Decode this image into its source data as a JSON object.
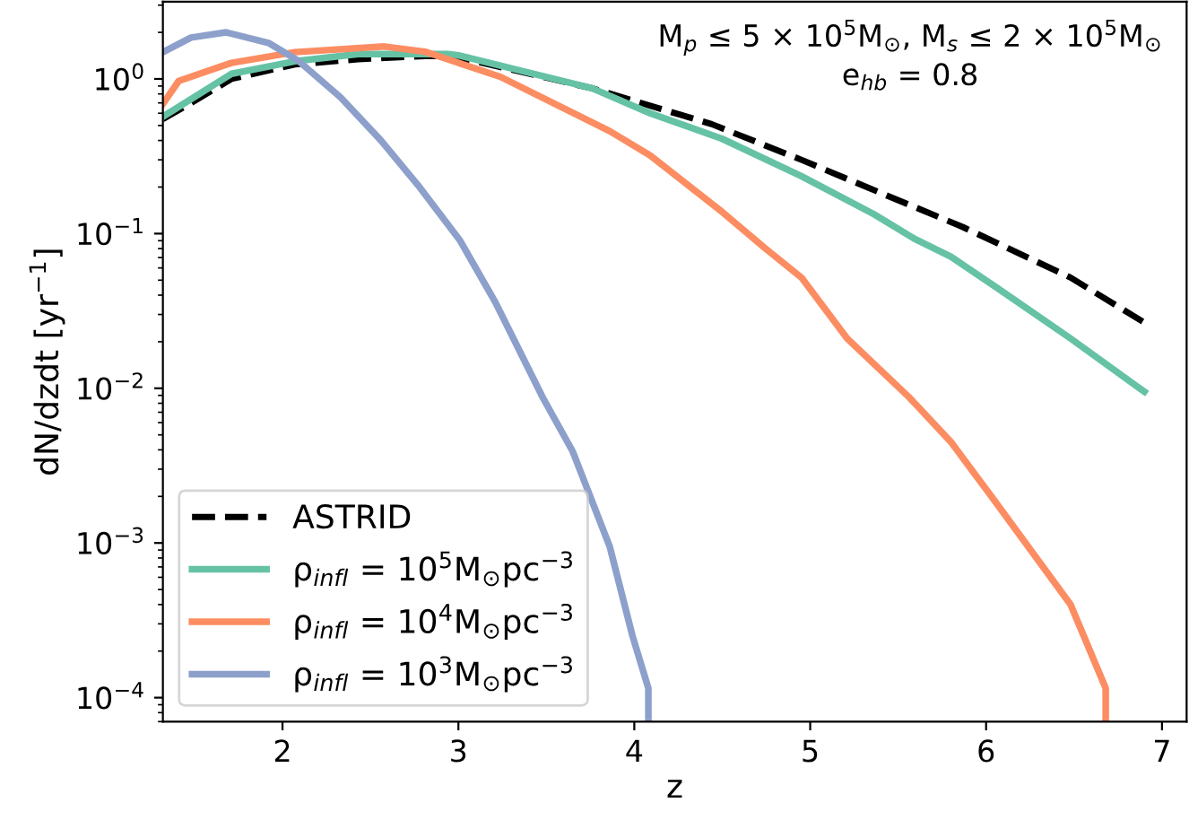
{
  "chart_data": {
    "type": "line",
    "xlabel": "z",
    "ylabel": "dN/dzdt [yr$^{−1}$]",
    "annotations": [
      "M$_{p}$ ≤ 5 × 10$^{5}$M$_{⊙}$, M$_{s}$ ≤ 2 × 10$^{5}$M$_{⊙}$\ne$_{hb}$ = 0.8"
    ],
    "log": "y",
    "grid": false,
    "legend": "bottom left",
    "xlim": [
      1.32,
      7.14
    ],
    "xticks": [
      2,
      3,
      4,
      5,
      6,
      7
    ],
    "ylim": [
      7e-05,
      3.16
    ],
    "yticks": [
      {
        "value": 0.0001,
        "label": "10$^{−4}$"
      },
      {
        "value": 0.001,
        "label": "10$^{−3}$"
      },
      {
        "value": 0.01,
        "label": "10$^{−2}$"
      },
      {
        "value": 0.1,
        "label": "10$^{−1}$"
      },
      {
        "value": 1,
        "label": "10$^{0}$"
      }
    ],
    "series": [
      {
        "name": "ASTRID",
        "color": "#000000",
        "line_style": "dashed",
        "x": [
          1.32,
          1.5,
          1.71,
          2.07,
          2.43,
          2.84,
          3.0,
          3.76,
          4.44,
          4.95,
          5.56,
          5.87,
          6.48,
          6.89
        ],
        "values": [
          0.55,
          0.72,
          1.0,
          1.24,
          1.34,
          1.41,
          1.38,
          0.87,
          0.51,
          0.3,
          0.154,
          0.11,
          0.052,
          0.027
        ]
      },
      {
        "name": "ρ$_{infl}$ = 10$^{5}$M$_{⊙}$pc$^{−3}$",
        "color": "#66c2a5",
        "line_style": "solid",
        "x": [
          1.32,
          1.71,
          2.07,
          2.43,
          2.94,
          3.0,
          3.76,
          4.09,
          4.5,
          4.95,
          5.36,
          5.59,
          5.8,
          6.07,
          6.48,
          6.9
        ],
        "values": [
          0.57,
          1.08,
          1.3,
          1.45,
          1.45,
          1.42,
          0.87,
          0.6,
          0.41,
          0.235,
          0.134,
          0.093,
          0.071,
          0.044,
          0.021,
          0.0095
        ]
      },
      {
        "name": "ρ$_{infl}$ = 10$^{4}$M$_{⊙}$pc$^{−3}$",
        "color": "#fc8d62",
        "line_style": "solid",
        "x": [
          1.32,
          1.41,
          1.71,
          2.07,
          2.58,
          2.81,
          3.24,
          3.86,
          4.09,
          4.5,
          4.74,
          4.95,
          5.21,
          5.56,
          5.8,
          6.03,
          6.48,
          6.68,
          6.68
        ],
        "values": [
          0.69,
          0.97,
          1.27,
          1.49,
          1.62,
          1.5,
          1.03,
          0.46,
          0.32,
          0.138,
          0.081,
          0.052,
          0.021,
          0.0088,
          0.0045,
          0.002,
          0.0004,
          0.000115,
          7e-05
        ]
      },
      {
        "name": "ρ$_{infl}$ = 10$^{3}$M$_{⊙}$pc$^{−3}$",
        "color": "#8da0cb",
        "line_style": "solid",
        "x": [
          1.32,
          1.48,
          1.68,
          1.92,
          2.09,
          2.33,
          2.56,
          2.77,
          3.01,
          3.21,
          3.48,
          3.65,
          3.86,
          3.99,
          4.08,
          4.08
        ],
        "values": [
          1.49,
          1.85,
          2.0,
          1.71,
          1.31,
          0.76,
          0.4,
          0.206,
          0.09,
          0.036,
          0.0087,
          0.0039,
          0.00095,
          0.00025,
          0.000115,
          7e-05
        ]
      }
    ]
  }
}
